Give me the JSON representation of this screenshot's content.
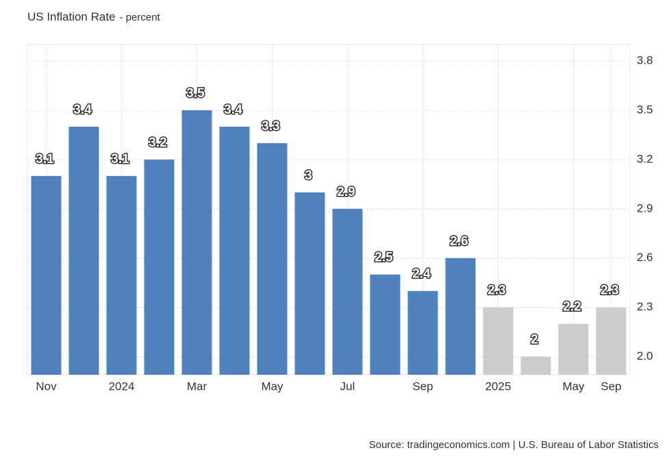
{
  "chart_data": {
    "type": "bar",
    "title": "US Inflation Rate",
    "subtitle": "- percent",
    "source": "Source: tradingeconomics.com | U.S. Bureau of Labor Statistics",
    "categories": [
      "Nov",
      null,
      "2024",
      null,
      "Mar",
      null,
      "May",
      null,
      "Jul",
      null,
      "Sep",
      null,
      "2025",
      null,
      "May",
      "Sep"
    ],
    "values": [
      3.1,
      3.4,
      3.1,
      3.2,
      3.5,
      3.4,
      3.3,
      3,
      2.9,
      2.5,
      2.4,
      2.6,
      2.3,
      2,
      2.2,
      2.3
    ],
    "colors": [
      "#4f81bd",
      "#4f81bd",
      "#4f81bd",
      "#4f81bd",
      "#4f81bd",
      "#4f81bd",
      "#4f81bd",
      "#4f81bd",
      "#4f81bd",
      "#4f81bd",
      "#4f81bd",
      "#4f81bd",
      "#cccccc",
      "#cccccc",
      "#cccccc",
      "#cccccc"
    ],
    "ylim": [
      1.89,
      3.9
    ],
    "yticks": [
      {
        "value": 2.0,
        "label": "2.0"
      },
      2.3,
      2.6,
      2.9,
      3.2,
      3.5,
      3.8
    ],
    "grid": true
  }
}
